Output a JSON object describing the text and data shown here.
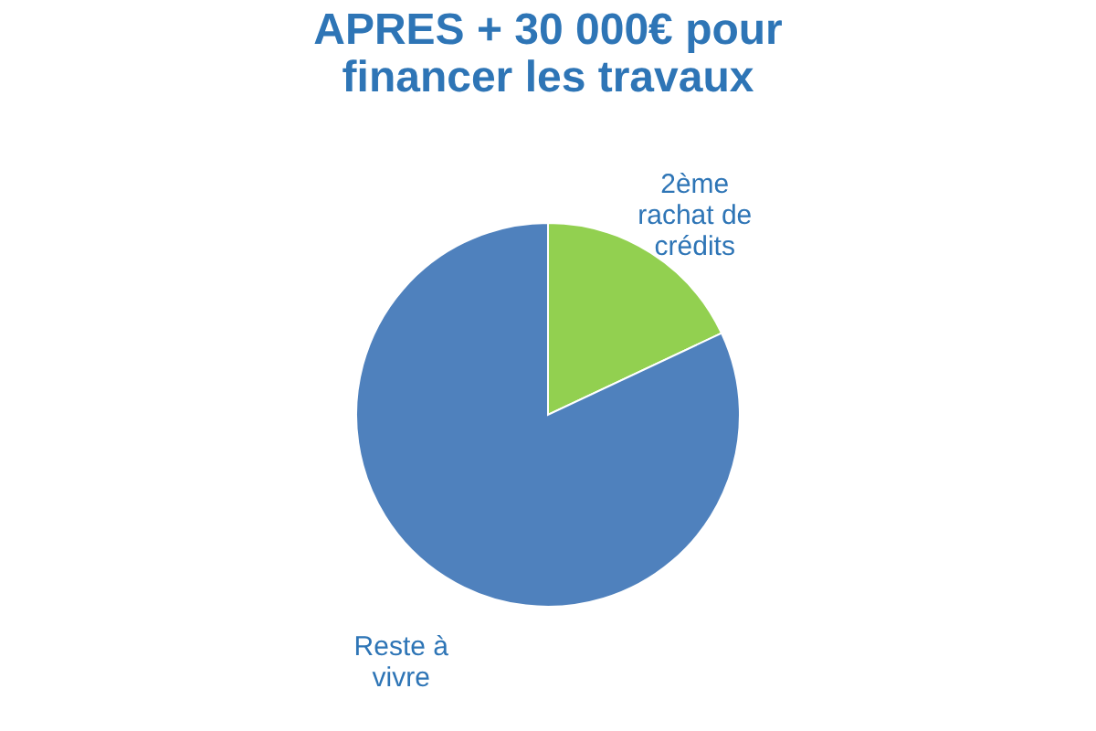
{
  "chart_data": {
    "type": "pie",
    "title": "APRES + 30 000€ pour financer les travaux",
    "categories": [
      "2ème rachat de crédits",
      "Reste à vivre"
    ],
    "values": [
      18,
      82
    ],
    "colors": [
      "#92d050",
      "#4f81bd"
    ],
    "legend": false
  }
}
